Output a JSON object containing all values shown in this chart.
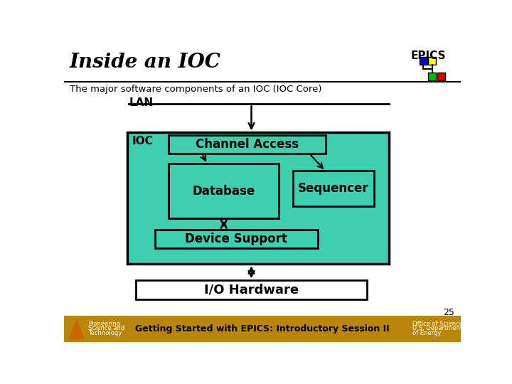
{
  "title": "Inside an IOC",
  "subtitle": "The major software components of an IOC (IOC Core)",
  "epics_label": "EPICS",
  "lan_label": "LAN",
  "ioc_label": "IOC",
  "channel_access_label": "Channel Access",
  "database_label": "Database",
  "sequencer_label": "Sequencer",
  "device_support_label": "Device Support",
  "io_hardware_label": "I/O Hardware",
  "footer_center": "Getting Started with EPICS: Introductory Session II",
  "footer_left1": "Pioneering",
  "footer_left2": "Science and",
  "footer_left3": "Technology",
  "page_number": "25",
  "bg_color": "#ffffff",
  "teal_color": "#3dcfb0",
  "footer_bg": "#b8860b",
  "epics_blue": "#0000ff",
  "epics_yellow": "#ffff00",
  "epics_green": "#00bb00",
  "epics_red": "#dd0000",
  "footer_gold": "#b8860b"
}
